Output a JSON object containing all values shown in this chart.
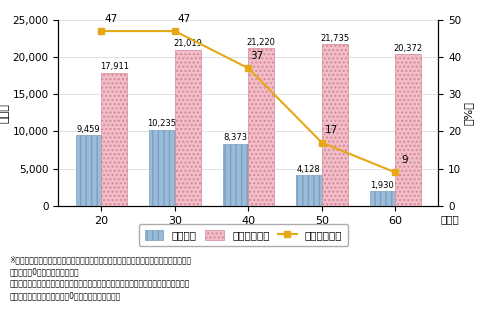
{
  "categories": [
    "20",
    "30",
    "40",
    "50",
    "60"
  ],
  "xlabel_suffix": "（代）",
  "ylabel_left": "（円）",
  "ylabel_right": "（%）",
  "overall_avg": [
    9459,
    10235,
    8373,
    4128,
    1930
  ],
  "user_avg": [
    17911,
    21019,
    21220,
    21735,
    20372
  ],
  "user_ratio": [
    47,
    47,
    37,
    17,
    9
  ],
  "ylim_left": [
    0,
    25000
  ],
  "ylim_right": [
    0,
    50
  ],
  "yticks_left": [
    0,
    5000,
    10000,
    15000,
    20000,
    25000
  ],
  "yticks_right": [
    0,
    10,
    20,
    30,
    40,
    50
  ],
  "bar_color_overall": "#9bbcd9",
  "bar_color_user": "#f2bec8",
  "line_color": "#e6a817",
  "line_marker": "s",
  "legend_labels": [
    "全体平均",
    "利用者の平均",
    "利用者の割合"
  ],
  "note_lines": [
    "※全体平均は、調査対象者を分母としたスマホによる消費金額の平均（スマホによる消",
    "　費金額が0円の者も含め算出）",
    "　利用者の平均は、スマホによる消費を行った者に限ったスマホによる消費金額の平均",
    "　（スマホによる消費金額が0円の者は除いて算出）"
  ],
  "bar_width": 0.35,
  "fig_width": 4.87,
  "fig_height": 3.32,
  "dpi": 100
}
